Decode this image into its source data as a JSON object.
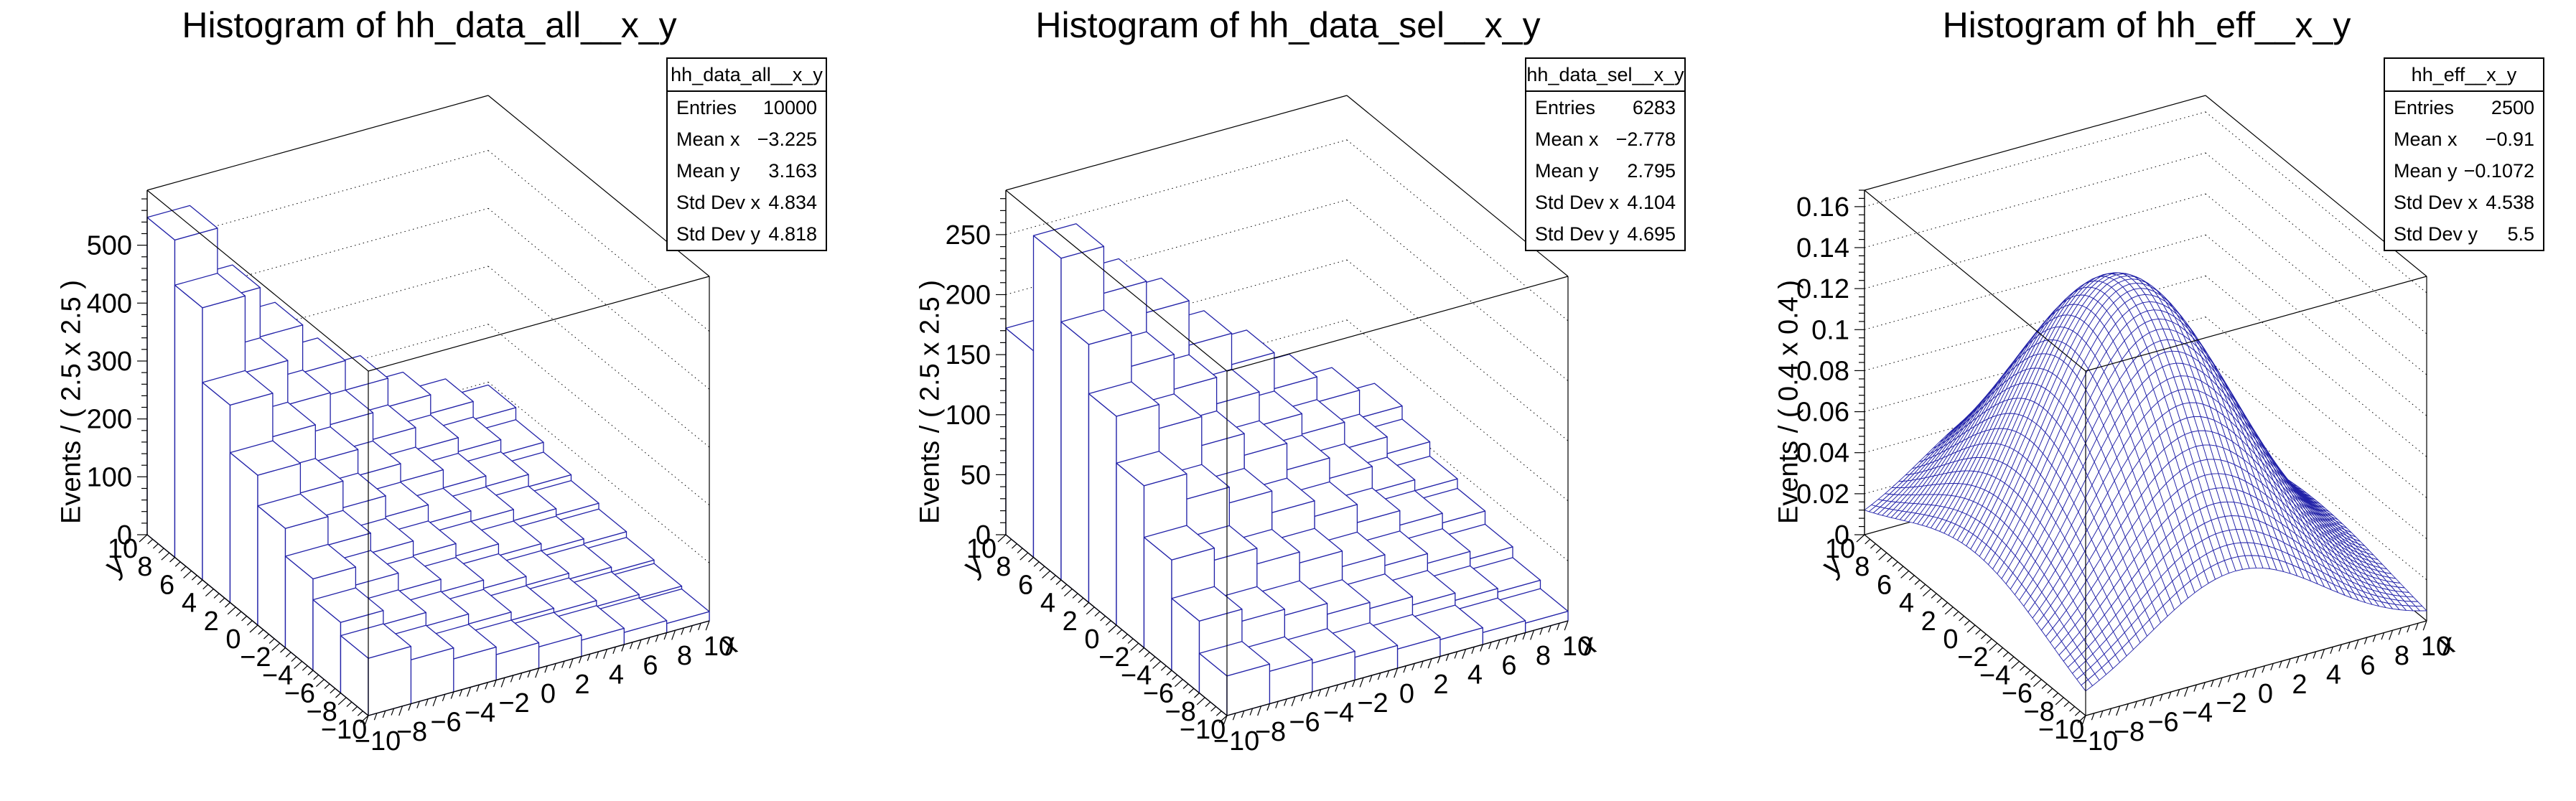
{
  "colors": {
    "hist_line": "#2222a8",
    "frame": "#000000",
    "background": "#ffffff"
  },
  "panels": [
    {
      "title": "Histogram of hh_data_all__x_y",
      "z_title": "Events / ( 2.5 x 2.5 )",
      "x_title": "x",
      "y_title": "y",
      "stats": {
        "name": "hh_data_all__x_y",
        "rows": [
          {
            "label": "Entries",
            "value": "10000"
          },
          {
            "label": "Mean x",
            "value": "−3.225"
          },
          {
            "label": "Mean y",
            "value": "3.163"
          },
          {
            "label": "Std Dev x",
            "value": "4.834"
          },
          {
            "label": "Std Dev y",
            "value": "4.818"
          }
        ]
      }
    },
    {
      "title": "Histogram of hh_data_sel__x_y",
      "z_title": "Events / ( 2.5 x 2.5 )",
      "x_title": "x",
      "y_title": "y",
      "stats": {
        "name": "hh_data_sel__x_y",
        "rows": [
          {
            "label": "Entries",
            "value": "6283"
          },
          {
            "label": "Mean x",
            "value": "−2.778"
          },
          {
            "label": "Mean y",
            "value": "2.795"
          },
          {
            "label": "Std Dev x",
            "value": "4.104"
          },
          {
            "label": "Std Dev y",
            "value": "4.695"
          }
        ]
      }
    },
    {
      "title": "Histogram of hh_eff__x_y",
      "z_title": "Events / ( 0.4 x 0.4 )",
      "x_title": "x",
      "y_title": "y",
      "stats": {
        "name": "hh_eff__x_y",
        "rows": [
          {
            "label": "Entries",
            "value": "2500"
          },
          {
            "label": "Mean x",
            "value": "−0.91"
          },
          {
            "label": "Mean y",
            "value": "−0.1072"
          },
          {
            "label": "Std Dev x",
            "value": "4.538"
          },
          {
            "label": "Std Dev y",
            "value": "5.5"
          }
        ]
      }
    }
  ],
  "chart_data": [
    {
      "type": "lego",
      "title": "Histogram of hh_data_all__x_y",
      "x": {
        "min": -10,
        "max": 10,
        "bins": 8,
        "bin_width": 2.5,
        "tick_labels": [
          -10,
          -8,
          -6,
          -4,
          -2,
          0,
          2,
          4,
          6,
          8,
          10
        ],
        "title": "x"
      },
      "y": {
        "min": -10,
        "max": 10,
        "bins": 8,
        "bin_width": 2.5,
        "tick_labels": [
          -10,
          -8,
          -6,
          -4,
          -2,
          0,
          2,
          4,
          6,
          8,
          10
        ],
        "title": "y"
      },
      "z": {
        "max": 595,
        "tick_step": 100,
        "label_max": 500,
        "tick_labels": [
          0,
          100,
          200,
          300,
          400,
          500
        ],
        "title": "Events / ( 2.5 x 2.5 )"
      },
      "values_note": "rows are y bins ascending from y=[-10,-7.5] to y=[7.5,10]; columns are x bins ascending from x=[-10,-7.5]",
      "values": [
        [
          99,
          76,
          57,
          44,
          37,
          28,
          21,
          16
        ],
        [
          122,
          98,
          75,
          58,
          44,
          37,
          27,
          21
        ],
        [
          158,
          127,
          96,
          74,
          60,
          45,
          35,
          27
        ],
        [
          206,
          157,
          123,
          98,
          77,
          57,
          45,
          37
        ],
        [
          259,
          208,
          162,
          126,
          95,
          77,
          58,
          47
        ],
        [
          341,
          266,
          203,
          158,
          127,
          96,
          78,
          57
        ],
        [
          470,
          338,
          262,
          207,
          161,
          123,
          99,
          74
        ],
        [
          548,
          425,
          340,
          258,
          207,
          158,
          126,
          95
        ]
      ]
    },
    {
      "type": "lego",
      "title": "Histogram of hh_data_sel__x_y",
      "x": {
        "min": -10,
        "max": 10,
        "bins": 8,
        "bin_width": 2.5,
        "tick_labels": [
          -10,
          -8,
          -6,
          -4,
          -2,
          0,
          2,
          4,
          6,
          8,
          10
        ],
        "title": "x"
      },
      "y": {
        "min": -10,
        "max": 10,
        "bins": 8,
        "bin_width": 2.5,
        "tick_labels": [
          -10,
          -8,
          -6,
          -4,
          -2,
          0,
          2,
          4,
          6,
          8,
          10
        ],
        "title": "y"
      },
      "z": {
        "max": 287,
        "tick_step": 50,
        "label_max": 250,
        "tick_labels": [
          0,
          50,
          100,
          150,
          200,
          250
        ],
        "title": "Events / ( 2.5 x 2.5 )"
      },
      "values_note": "rows are y bins ascending from y=[-10,-7.5] to y=[7.5,10]; columns are x bins ascending from x=[-10,-7.5]",
      "values": [
        [
          33,
          27,
          24,
          19,
          16,
          14,
          10,
          8
        ],
        [
          60,
          50,
          45,
          36,
          31,
          24,
          18,
          15
        ],
        [
          92,
          82,
          69,
          60,
          47,
          38,
          30,
          24
        ],
        [
          135,
          114,
          101,
          83,
          70,
          55,
          43,
          35
        ],
        [
          174,
          154,
          130,
          112,
          90,
          73,
          52,
          43
        ],
        [
          215,
          187,
          158,
          136,
          108,
          91,
          69,
          55
        ],
        [
          268,
          229,
          203,
          166,
          140,
          110,
          89,
          66
        ],
        [
          172,
          148,
          132,
          107,
          92,
          71,
          58,
          43
        ]
      ]
    },
    {
      "type": "surface",
      "title": "Histogram of hh_eff__x_y",
      "x": {
        "min": -10,
        "max": 10,
        "bins": 50,
        "bin_width": 0.4,
        "tick_labels": [
          -10,
          -8,
          -6,
          -4,
          -2,
          0,
          2,
          4,
          6,
          8,
          10
        ],
        "title": "x"
      },
      "y": {
        "min": -10,
        "max": 10,
        "bins": 50,
        "bin_width": 0.4,
        "tick_labels": [
          -10,
          -8,
          -6,
          -4,
          -2,
          0,
          2,
          4,
          6,
          8,
          10
        ],
        "title": "y"
      },
      "z": {
        "max": 0.168,
        "tick_step": 0.02,
        "label_max": 0.16,
        "tick_labels": [
          0,
          0.02,
          0.04,
          0.06,
          0.08,
          0.1,
          0.12,
          0.14,
          0.16
        ],
        "title": "Events / ( 0.4 x 0.4 )"
      },
      "grid": 50,
      "surface": {
        "peak": 0.148,
        "x0": -1.2,
        "sx": 5.2,
        "y0": 0,
        "sy": 6.8
      },
      "z_formula": "z = 0.148 * exp(-0.5*((x+1.2)/5.2)^2 - 0.5*(y/6.8)^2)"
    }
  ]
}
